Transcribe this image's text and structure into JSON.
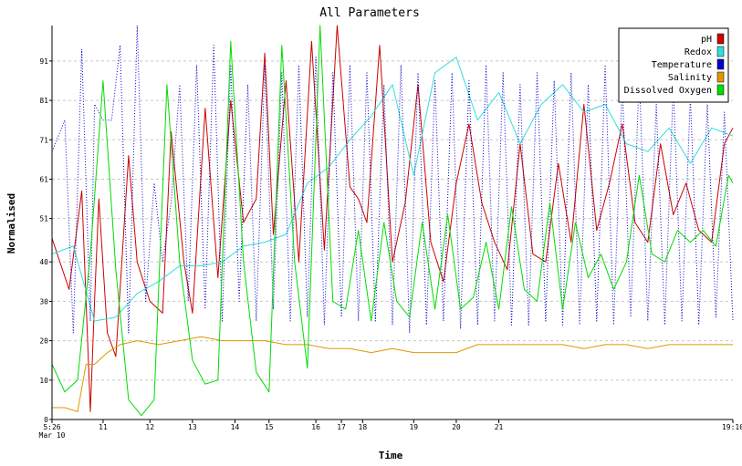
{
  "chart_data": {
    "type": "line",
    "title": "All Parameters",
    "xlabel": "Time",
    "ylabel": "Normalised",
    "xlim": [
      0,
      16
    ],
    "ylim": [
      0,
      100
    ],
    "y_ticks": [
      0,
      10,
      20,
      30,
      40,
      51,
      61,
      71,
      81,
      91
    ],
    "x_ticks": [
      {
        "x": 0,
        "label": "5:26",
        "sub": "Mar 10"
      },
      {
        "x": 1.2,
        "label": "11"
      },
      {
        "x": 2.3,
        "label": "12"
      },
      {
        "x": 3.3,
        "label": "13"
      },
      {
        "x": 4.3,
        "label": "14"
      },
      {
        "x": 5.1,
        "label": "15"
      },
      {
        "x": 6.2,
        "label": "16"
      },
      {
        "x": 6.8,
        "label": "17"
      },
      {
        "x": 7.3,
        "label": "18"
      },
      {
        "x": 8.5,
        "label": "19"
      },
      {
        "x": 9.5,
        "label": "20"
      },
      {
        "x": 10.5,
        "label": "21"
      },
      {
        "x": 16,
        "label": "19:10"
      }
    ],
    "grid": true,
    "legend_position": "top-right",
    "series": [
      {
        "name": "pH",
        "color": "#cc0000",
        "style": "solid",
        "x": [
          0,
          0.4,
          0.7,
          0.9,
          1.0,
          1.1,
          1.3,
          1.5,
          1.8,
          2.0,
          2.3,
          2.6,
          2.8,
          3.1,
          3.3,
          3.6,
          3.9,
          4.2,
          4.5,
          4.8,
          5.0,
          5.2,
          5.5,
          5.8,
          6.1,
          6.4,
          6.7,
          7.0,
          7.2,
          7.4,
          7.7,
          8.0,
          8.3,
          8.6,
          8.9,
          9.2,
          9.5,
          9.8,
          10.1,
          10.4,
          10.7,
          11.0,
          11.3,
          11.6,
          11.9,
          12.2,
          12.5,
          12.8,
          13.1,
          13.4,
          13.7,
          14.0,
          14.3,
          14.6,
          14.9,
          15.2,
          15.5,
          15.8,
          16
        ],
        "y": [
          46,
          33,
          58,
          2,
          30,
          56,
          22,
          16,
          67,
          40,
          30,
          27,
          73,
          40,
          27,
          79,
          36,
          81,
          50,
          56,
          93,
          47,
          86,
          40,
          96,
          43,
          100,
          59,
          56,
          50,
          95,
          40,
          55,
          85,
          45,
          35,
          60,
          75,
          55,
          45,
          38,
          70,
          42,
          40,
          65,
          45,
          80,
          48,
          60,
          75,
          50,
          45,
          70,
          52,
          60,
          48,
          45,
          70,
          74
        ]
      },
      {
        "name": "Redox",
        "color": "#33dddd",
        "style": "solid",
        "x": [
          0,
          0.5,
          1.0,
          1.5,
          2.0,
          2.5,
          3.0,
          3.5,
          4.0,
          4.5,
          5.0,
          5.5,
          6.0,
          6.5,
          7.0,
          7.5,
          8.0,
          8.5,
          9.0,
          9.5,
          10.0,
          10.5,
          11.0,
          11.5,
          12.0,
          12.5,
          13.0,
          13.5,
          14.0,
          14.5,
          15.0,
          15.5,
          16
        ],
        "y": [
          42,
          44,
          25,
          26,
          32,
          35,
          39,
          39,
          40,
          44,
          45,
          47,
          60,
          64,
          71,
          77,
          85,
          62,
          88,
          92,
          76,
          83,
          70,
          80,
          85,
          78,
          80,
          70,
          68,
          74,
          65,
          74,
          72
        ]
      },
      {
        "name": "Temperature",
        "color": "#0000cc",
        "style": "dotted",
        "x": [
          0,
          0.3,
          0.5,
          0.7,
          0.9,
          1.0,
          1.2,
          1.4,
          1.6,
          1.8,
          2.0,
          2.2,
          2.4,
          2.6,
          2.8,
          3.0,
          3.2,
          3.4,
          3.6,
          3.8,
          4.0,
          4.2,
          4.4,
          4.6,
          4.8,
          5.0,
          5.2,
          5.4,
          5.6,
          5.8,
          6.0,
          6.2,
          6.4,
          6.6,
          6.8,
          7.0,
          7.2,
          7.4,
          7.6,
          7.8,
          8.0,
          8.2,
          8.4,
          8.6,
          8.8,
          9.0,
          9.2,
          9.4,
          9.6,
          9.8,
          10.0,
          10.2,
          10.4,
          10.6,
          10.8,
          11.0,
          11.2,
          11.4,
          11.6,
          11.8,
          12.0,
          12.2,
          12.4,
          12.6,
          12.8,
          13.0,
          13.2,
          13.4,
          13.6,
          13.8,
          14.0,
          14.2,
          14.4,
          14.6,
          14.8,
          15.0,
          15.2,
          15.4,
          15.6,
          15.8,
          16
        ],
        "y": [
          68,
          76,
          22,
          94,
          25,
          80,
          76,
          76,
          95,
          22,
          100,
          30,
          60,
          40,
          55,
          85,
          30,
          90,
          28,
          95,
          25,
          90,
          30,
          85,
          25,
          90,
          28,
          88,
          25,
          90,
          26,
          92,
          24,
          88,
          26,
          90,
          25,
          88,
          25,
          85,
          24,
          90,
          22,
          88,
          24,
          86,
          25,
          88,
          23,
          86,
          24,
          90,
          25,
          88,
          24,
          85,
          24,
          88,
          25,
          86,
          24,
          88,
          24,
          85,
          25,
          90,
          24,
          85,
          26,
          88,
          25,
          80,
          24,
          85,
          25,
          82,
          24,
          80,
          26,
          78,
          25
        ]
      },
      {
        "name": "Salinity",
        "color": "#dd9900",
        "style": "solid",
        "x": [
          0,
          0.3,
          0.6,
          0.8,
          1.0,
          1.3,
          1.6,
          2.0,
          2.5,
          3.0,
          3.5,
          4.0,
          4.5,
          5.0,
          5.5,
          6.0,
          6.5,
          7.0,
          7.5,
          8.0,
          8.5,
          9.0,
          9.5,
          10.0,
          10.5,
          11.0,
          11.5,
          12.0,
          12.5,
          13.0,
          13.5,
          14.0,
          14.5,
          15.0,
          15.5,
          16
        ],
        "y": [
          3,
          3,
          2,
          14,
          14,
          17,
          19,
          20,
          19,
          20,
          21,
          20,
          20,
          20,
          19,
          19,
          18,
          18,
          17,
          18,
          17,
          17,
          17,
          19,
          19,
          19,
          19,
          19,
          18,
          19,
          19,
          18,
          19,
          19,
          19,
          19
        ]
      },
      {
        "name": "Dissolved Oxygen",
        "color": "#00dd00",
        "style": "solid",
        "x": [
          0,
          0.3,
          0.6,
          0.9,
          1.2,
          1.5,
          1.8,
          2.1,
          2.4,
          2.7,
          3.0,
          3.3,
          3.6,
          3.9,
          4.2,
          4.5,
          4.8,
          5.1,
          5.4,
          5.7,
          6.0,
          6.3,
          6.6,
          6.9,
          7.2,
          7.5,
          7.8,
          8.1,
          8.4,
          8.7,
          9.0,
          9.3,
          9.6,
          9.9,
          10.2,
          10.5,
          10.8,
          11.1,
          11.4,
          11.7,
          12.0,
          12.3,
          12.6,
          12.9,
          13.2,
          13.5,
          13.8,
          14.1,
          14.4,
          14.7,
          15.0,
          15.3,
          15.6,
          15.9,
          16
        ],
        "y": [
          14,
          7,
          10,
          42,
          86,
          38,
          5,
          1,
          5,
          85,
          40,
          15,
          9,
          10,
          96,
          40,
          12,
          7,
          95,
          40,
          13,
          100,
          30,
          28,
          48,
          25,
          50,
          30,
          26,
          50,
          28,
          52,
          28,
          31,
          45,
          28,
          54,
          33,
          30,
          55,
          28,
          50,
          36,
          42,
          33,
          40,
          62,
          42,
          40,
          48,
          45,
          48,
          44,
          62,
          60
        ]
      }
    ]
  }
}
